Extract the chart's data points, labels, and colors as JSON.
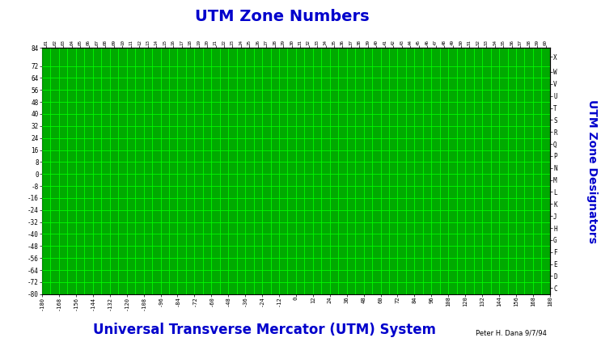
{
  "title": "UTM Zone Numbers",
  "xlabel": "Universal Transverse Mercator (UTM) System",
  "ylabel_right": "UTM Zone Designators",
  "credit": "Peter H. Dana 9/7/94",
  "bg_color": "#ffffff",
  "map_bg_color": "#00aa00",
  "grid_color": "#00ff00",
  "land_color": "#003300",
  "coast_color": "#000000",
  "title_color": "#0000cc",
  "label_color": "#0000cc",
  "zone_labels_top": [
    "01",
    "02",
    "03",
    "04",
    "05",
    "06",
    "07",
    "08",
    "09",
    "10",
    "11",
    "12",
    "13",
    "14",
    "15",
    "16",
    "17",
    "18",
    "19",
    "20",
    "21",
    "22",
    "23",
    "24",
    "25",
    "26",
    "27",
    "28",
    "29",
    "30",
    "31",
    "32",
    "33",
    "34",
    "35",
    "36",
    "37",
    "38",
    "39",
    "40",
    "41",
    "42",
    "43",
    "44",
    "45",
    "46",
    "47",
    "48",
    "49",
    "50",
    "51",
    "52",
    "53",
    "54",
    "55",
    "56",
    "57",
    "58",
    "59",
    "60"
  ],
  "zone_designators_top_to_bottom": [
    "X",
    "W",
    "V",
    "U",
    "T",
    "S",
    "R",
    "Q",
    "P",
    "N",
    "M",
    "L",
    "K",
    "J",
    "H",
    "G",
    "F",
    "E",
    "D",
    "C"
  ],
  "lat_ticks": [
    84,
    72,
    64,
    56,
    48,
    40,
    32,
    24,
    16,
    8,
    0,
    -8,
    -16,
    -24,
    -32,
    -40,
    -48,
    -56,
    -64,
    -72,
    -80
  ],
  "lon_ticks": [
    -180,
    -168,
    -156,
    -144,
    -132,
    -120,
    -108,
    -96,
    -84,
    -72,
    -60,
    -48,
    -36,
    -24,
    -12,
    0,
    12,
    24,
    36,
    48,
    60,
    72,
    84,
    96,
    108,
    120,
    132,
    144,
    156,
    168,
    180
  ],
  "xlim": [
    -180,
    180
  ],
  "ylim": [
    -80,
    84
  ],
  "figsize": [
    7.43,
    4.23
  ],
  "dpi": 100
}
